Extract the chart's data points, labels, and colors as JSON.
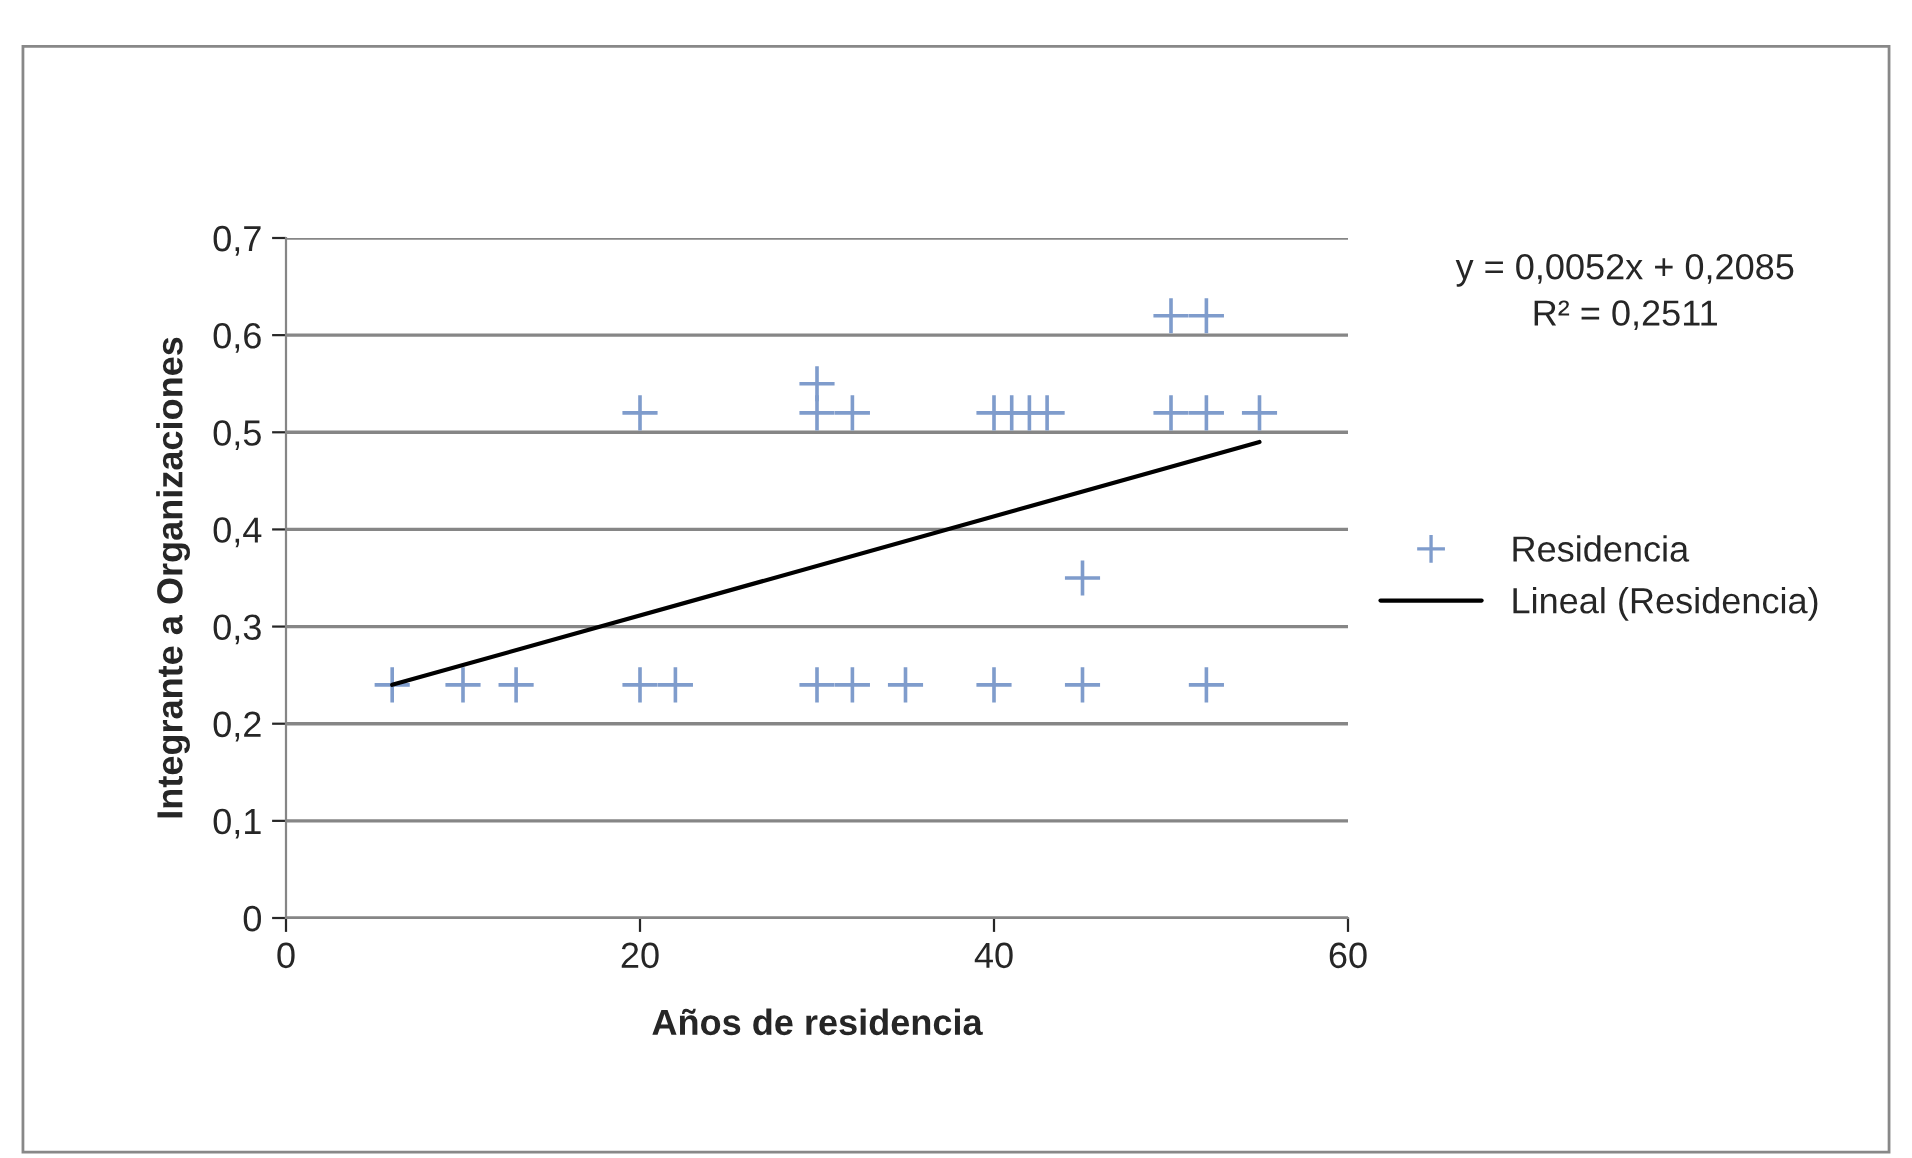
{
  "chart_data": {
    "type": "scatter",
    "xlabel": "Años de residencia",
    "ylabel": "Integrante a Organizaciones",
    "xlim": [
      0,
      60
    ],
    "xticks": [
      0,
      20,
      40,
      60
    ],
    "ylim": [
      0,
      0.7
    ],
    "yticks": [
      {
        "value": 0,
        "label": "0"
      },
      {
        "value": 0.1,
        "label": "0,1"
      },
      {
        "value": 0.2,
        "label": "0,2"
      },
      {
        "value": 0.3,
        "label": "0,3"
      },
      {
        "value": 0.4,
        "label": "0,4"
      },
      {
        "value": 0.5,
        "label": "0,5"
      },
      {
        "value": 0.6,
        "label": "0,6"
      },
      {
        "value": 0.7,
        "label": "0,7"
      }
    ],
    "grid": "y",
    "legend": "right",
    "marker": "cross",
    "series": [
      {
        "name": "Residencia",
        "color": "#7f9ccc",
        "x": [
          6,
          10,
          13,
          20,
          22,
          30,
          32,
          35,
          40,
          45,
          52,
          20,
          30,
          32,
          40,
          41,
          42,
          43,
          50,
          52,
          55,
          30,
          45,
          50,
          52
        ],
        "values": [
          0.24,
          0.24,
          0.24,
          0.24,
          0.24,
          0.24,
          0.24,
          0.24,
          0.24,
          0.24,
          0.24,
          0.52,
          0.52,
          0.52,
          0.52,
          0.52,
          0.52,
          0.52,
          0.52,
          0.52,
          0.52,
          0.55,
          0.35,
          0.62,
          0.62
        ]
      },
      {
        "name": "Lineal (Residencia)",
        "type": "line",
        "color": "#000000",
        "marker": "none",
        "x": [
          6,
          55
        ],
        "values": [
          0.24,
          0.49
        ]
      }
    ],
    "annotations": [
      "y = 0,0052x + 0,2085",
      "R² = 0,2511"
    ]
  }
}
